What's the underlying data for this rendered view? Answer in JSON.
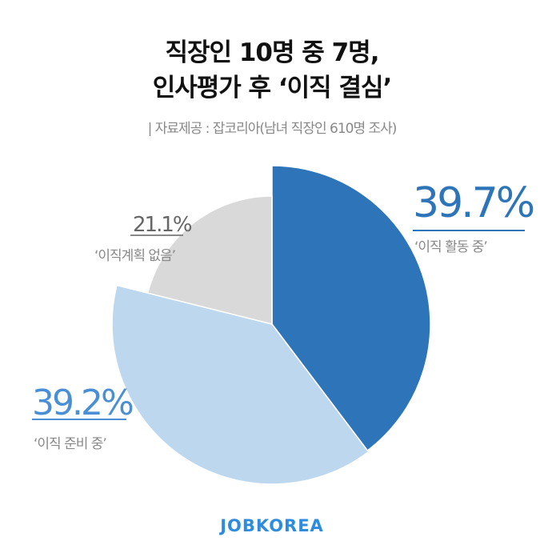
{
  "title_line1": "직장인 10명 중 7명,",
  "title_line2": "인사평가 후 ‘이직 결심’",
  "subtitle": "| 자료제공 : 잡코리아(남녀 직장인 610명 조사)",
  "logo": "JOBKOREA",
  "chart_data": {
    "type": "pie",
    "slices": [
      {
        "label": "‘이직 활동 중’",
        "value": 39.7,
        "value_label": "39.7%",
        "color": "#2e74b8"
      },
      {
        "label": "‘이직 준비 중’",
        "value": 39.2,
        "value_label": "39.2%",
        "color": "#bdd7ee"
      },
      {
        "label": "‘이직계획 없음’",
        "value": 21.1,
        "value_label": "21.1%",
        "color": "#d9d9d9"
      }
    ],
    "start": "top",
    "direction": "clockwise"
  }
}
